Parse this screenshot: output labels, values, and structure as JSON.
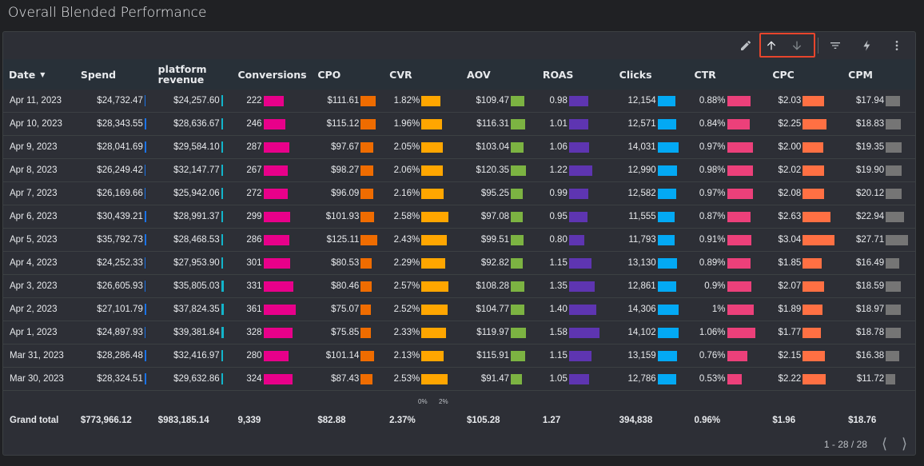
{
  "title": "Overall Blended Performance",
  "toolbar": {
    "icons": [
      "pencil-icon",
      "sort-ascending-icon",
      "sort-descending-icon",
      "filter-icon",
      "lightning-icon",
      "more-vert-icon"
    ]
  },
  "columns": [
    {
      "key": "date",
      "label": "Date",
      "sort": "▼"
    },
    {
      "key": "spend",
      "label": "Spend",
      "color": "#1a73e8"
    },
    {
      "key": "revenue",
      "label": "platform revenue",
      "color": "#12b5cb"
    },
    {
      "key": "conversions",
      "label": "Conversions",
      "color": "#e8008a"
    },
    {
      "key": "cpo",
      "label": "CPO",
      "color": "#ef6c00"
    },
    {
      "key": "cvr",
      "label": "CVR",
      "color": "#ffa600"
    },
    {
      "key": "aov",
      "label": "AOV",
      "color": "#7cb342"
    },
    {
      "key": "roas",
      "label": "ROAS",
      "color": "#5e35b1"
    },
    {
      "key": "clicks",
      "label": "Clicks",
      "color": "#03a9f4"
    },
    {
      "key": "ctr",
      "label": "CTR",
      "color": "#ec407a"
    },
    {
      "key": "cpc",
      "label": "CPC",
      "color": "#ff7043"
    },
    {
      "key": "cpm",
      "label": "CPM",
      "color": "#757575"
    }
  ],
  "rows": [
    [
      "Apr 11, 2023",
      "$24,732.47",
      "$24,257.60",
      "222",
      "$111.61",
      "1.82%",
      "$109.47",
      "0.98",
      "12,154",
      "0.88%",
      "$2.03",
      "$17.94"
    ],
    [
      "Apr 10, 2023",
      "$28,343.55",
      "$28,636.67",
      "246",
      "$115.12",
      "1.96%",
      "$116.31",
      "1.01",
      "12,571",
      "0.84%",
      "$2.25",
      "$18.83"
    ],
    [
      "Apr 9, 2023",
      "$28,041.69",
      "$29,584.10",
      "287",
      "$97.67",
      "2.05%",
      "$103.04",
      "1.06",
      "14,031",
      "0.97%",
      "$2.00",
      "$19.35"
    ],
    [
      "Apr 8, 2023",
      "$26,249.42",
      "$32,147.77",
      "267",
      "$98.27",
      "2.06%",
      "$120.35",
      "1.22",
      "12,990",
      "0.98%",
      "$2.02",
      "$19.90"
    ],
    [
      "Apr 7, 2023",
      "$26,169.66",
      "$25,942.06",
      "272",
      "$96.09",
      "2.16%",
      "$95.25",
      "0.99",
      "12,582",
      "0.97%",
      "$2.08",
      "$20.12"
    ],
    [
      "Apr 6, 2023",
      "$30,439.21",
      "$28,991.37",
      "299",
      "$101.93",
      "2.58%",
      "$97.08",
      "0.95",
      "11,555",
      "0.87%",
      "$2.63",
      "$22.94"
    ],
    [
      "Apr 5, 2023",
      "$35,792.73",
      "$28,468.53",
      "286",
      "$125.11",
      "2.43%",
      "$99.51",
      "0.80",
      "11,793",
      "0.91%",
      "$3.04",
      "$27.71"
    ],
    [
      "Apr 4, 2023",
      "$24,252.33",
      "$27,953.90",
      "301",
      "$80.53",
      "2.29%",
      "$92.82",
      "1.15",
      "13,130",
      "0.89%",
      "$1.85",
      "$16.49"
    ],
    [
      "Apr 3, 2023",
      "$26,605.93",
      "$35,805.03",
      "331",
      "$80.46",
      "2.57%",
      "$108.28",
      "1.35",
      "12,861",
      "0.9%",
      "$2.07",
      "$18.59"
    ],
    [
      "Apr 2, 2023",
      "$27,101.79",
      "$37,824.35",
      "361",
      "$75.07",
      "2.52%",
      "$104.77",
      "1.40",
      "14,306",
      "1%",
      "$1.89",
      "$18.97"
    ],
    [
      "Apr 1, 2023",
      "$24,897.93",
      "$39,381.84",
      "328",
      "$75.85",
      "2.33%",
      "$119.97",
      "1.58",
      "14,102",
      "1.06%",
      "$1.77",
      "$18.78"
    ],
    [
      "Mar 31, 2023",
      "$28,286.48",
      "$32,416.97",
      "280",
      "$101.14",
      "2.13%",
      "$115.91",
      "1.15",
      "13,159",
      "0.76%",
      "$2.15",
      "$16.38"
    ],
    [
      "Mar 30, 2023",
      "$28,324.51",
      "$29,632.86",
      "324",
      "$87.43",
      "2.53%",
      "$91.47",
      "1.05",
      "12,786",
      "0.53%",
      "$2.22",
      "$11.72"
    ]
  ],
  "axis_ticks": [
    "0%",
    "2%"
  ],
  "total": [
    "Grand total",
    "$773,966.12",
    "$983,185.14",
    "9,339",
    "$82.88",
    "2.37%",
    "$105.28",
    "1.27",
    "394,838",
    "0.96%",
    "$1.96",
    "$18.76"
  ],
  "pagination": {
    "label": "1 - 28 / 28"
  }
}
